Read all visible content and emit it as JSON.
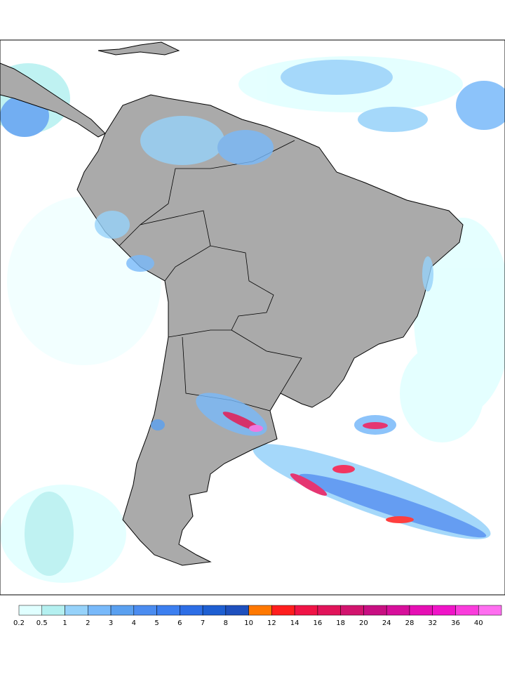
{
  "legend": {
    "levels": [
      0.2,
      0.5,
      1,
      2,
      3,
      4,
      5,
      6,
      7,
      8,
      10,
      12,
      14,
      16,
      18,
      20,
      24,
      28,
      32,
      36,
      40
    ],
    "colors": [
      "#e0ffff",
      "#b4f0f0",
      "#96d2fa",
      "#78b9fa",
      "#5aa0f0",
      "#4b8cf0",
      "#3c7ff0",
      "#2d6ee6",
      "#1e5fd2",
      "#1e50be",
      "#ff7800",
      "#ff1e1e",
      "#f01446",
      "#e1145a",
      "#d2146e",
      "#c80f82",
      "#d70f9b",
      "#e60fb4",
      "#f014c8",
      "#fa3cdc",
      "#ff6ef0"
    ]
  }
}
